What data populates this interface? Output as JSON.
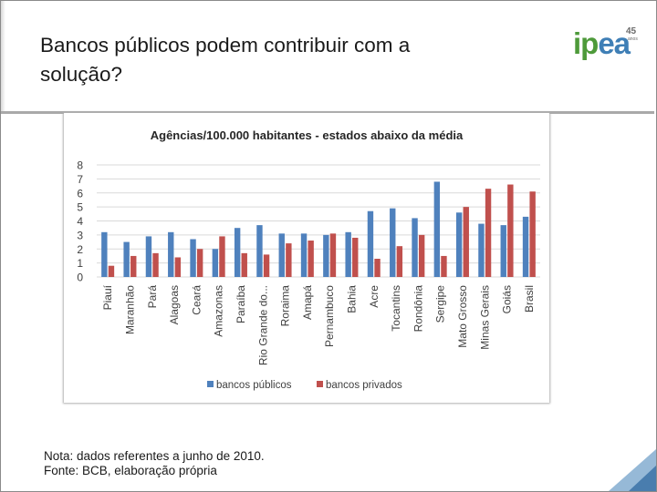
{
  "slide": {
    "title_line1": "Bancos públicos podem contribuir com a",
    "title_line2": "solução?",
    "logo_text_green": "ip",
    "logo_text_blue": "ea",
    "logo_number": "45",
    "logo_anos": "anos",
    "note_line1": "Nota: dados referentes a junho de 2010.",
    "note_line2": "Fonte: BCB, elaboração própria"
  },
  "colors": {
    "public": "#4f81bd",
    "private": "#c0504d",
    "grid": "#d9d9d9",
    "green": "#4e9a3a",
    "blue": "#3f7fb6"
  },
  "chart_data": {
    "type": "bar",
    "title": "Agências/100.000 habitantes - estados abaixo da média",
    "categories": [
      "Piauí",
      "Maranhão",
      "Pará",
      "Alagoas",
      "Ceará",
      "Amazonas",
      "Paraíba",
      "Rio Grande do...",
      "Roraima",
      "Amapá",
      "Pernambuco",
      "Bahia",
      "Acre",
      "Tocantins",
      "Rondônia",
      "Sergipe",
      "Mato Grosso",
      "Minas Gerais",
      "Goiás",
      "Brasil"
    ],
    "series": [
      {
        "name": "bancos públicos",
        "values": [
          3.2,
          2.5,
          2.9,
          3.2,
          2.7,
          2.0,
          3.5,
          3.7,
          3.1,
          3.1,
          3.0,
          3.2,
          4.7,
          4.9,
          4.2,
          6.8,
          4.6,
          3.8,
          3.7,
          4.3
        ]
      },
      {
        "name": "bancos privados",
        "values": [
          0.8,
          1.5,
          1.7,
          1.4,
          2.0,
          2.9,
          1.7,
          1.6,
          2.4,
          2.6,
          3.1,
          2.8,
          1.3,
          2.2,
          3.0,
          1.5,
          5.0,
          6.3,
          6.6,
          6.1
        ]
      }
    ],
    "ylim": [
      0,
      8
    ],
    "yticks": [
      "0",
      "1",
      "2",
      "3",
      "4",
      "5",
      "6",
      "7",
      "8"
    ],
    "xlabel": "",
    "ylabel": "",
    "grid": true,
    "legend_position": "bottom"
  }
}
